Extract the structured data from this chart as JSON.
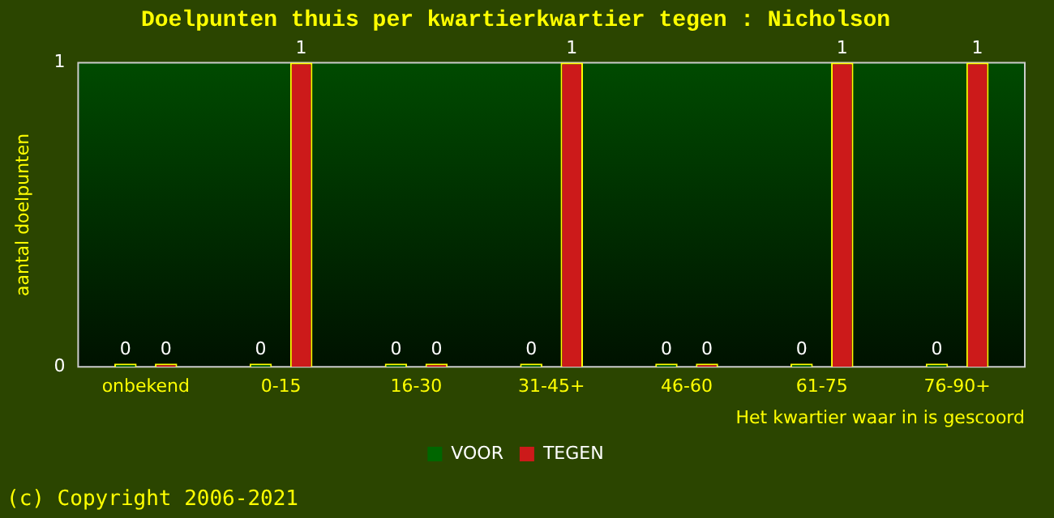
{
  "chart_data": {
    "type": "bar",
    "title": "Doelpunten thuis per kwartierkwartier tegen : Nicholson",
    "ylabel": "aantal doelpunten",
    "xlabel": "Het kwartier waar in is gescoord",
    "categories": [
      "onbekend",
      "0-15",
      "16-30",
      "31-45+",
      "46-60",
      "61-75",
      "76-90+"
    ],
    "series": [
      {
        "name": "VOOR",
        "color": "#006600",
        "values": [
          0,
          0,
          0,
          0,
          0,
          0,
          0
        ]
      },
      {
        "name": "TEGEN",
        "color": "#cc1a1a",
        "values": [
          0,
          1,
          0,
          1,
          0,
          1,
          1
        ]
      }
    ],
    "ylim": [
      0,
      1
    ],
    "yticks": [
      0,
      1
    ],
    "grid": false,
    "legend": "bottom",
    "data_labels": true,
    "annotations": [
      "(c) Copyright 2006-2021"
    ]
  }
}
